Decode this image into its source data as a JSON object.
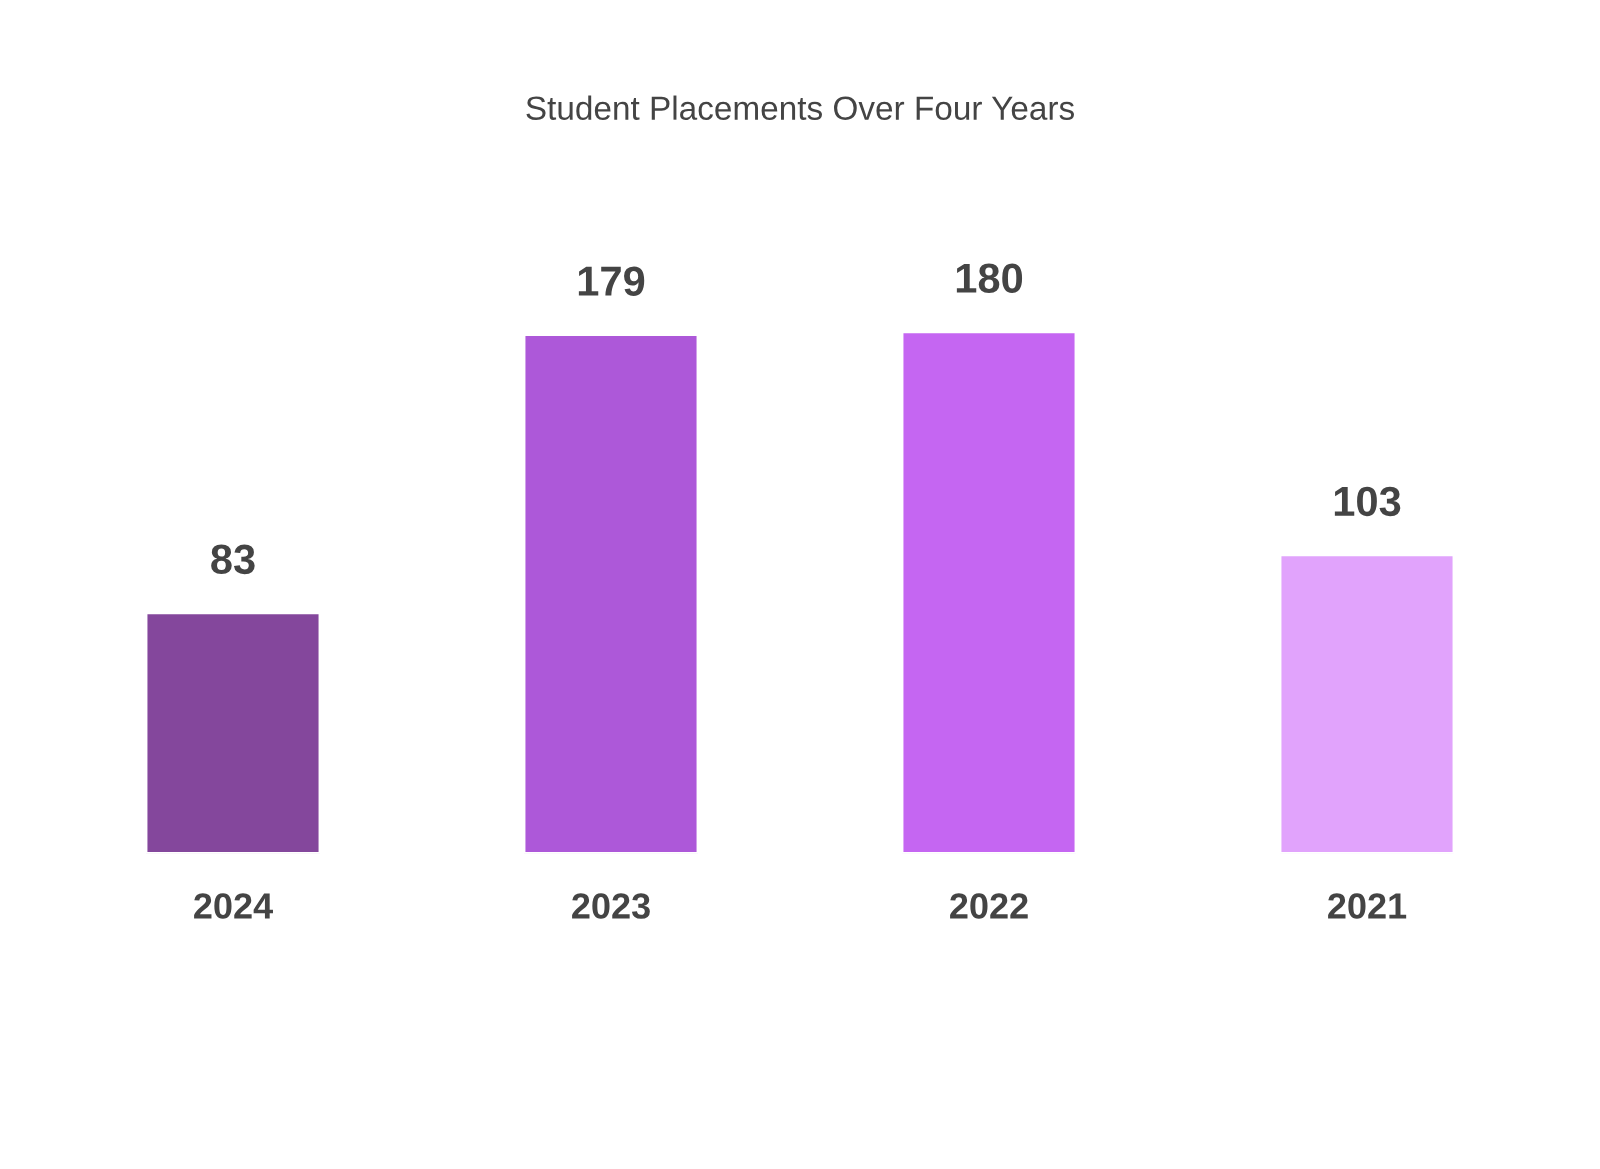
{
  "chart_data": {
    "type": "bar",
    "title": "Student Placements Over Four Years",
    "categories": [
      "2024",
      "2023",
      "2022",
      "2021"
    ],
    "values": [
      83,
      179,
      180,
      103
    ],
    "colors": [
      "#84479c",
      "#ad58d9",
      "#c566f2",
      "#e1a3fc"
    ],
    "data_labels": true,
    "tick_labels": "x",
    "grid": false,
    "legend": false
  }
}
